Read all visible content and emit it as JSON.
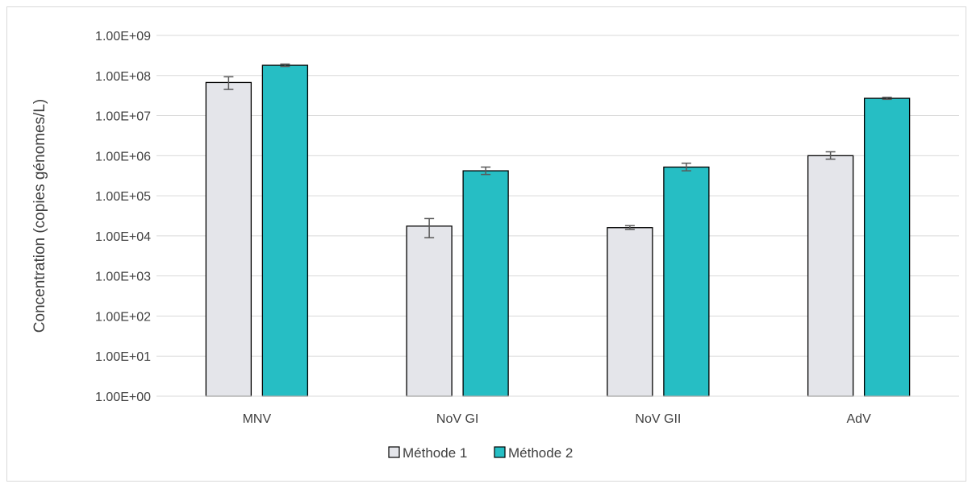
{
  "chart_data": {
    "type": "bar",
    "scale": "log",
    "title": "",
    "xlabel": "",
    "ylabel": "Concentration (copies génomes/L)",
    "ylim": [
      1,
      1000000000
    ],
    "y_ticks": [
      "1.00E+00",
      "1.00E+01",
      "1.00E+02",
      "1.00E+03",
      "1.00E+04",
      "1.00E+05",
      "1.00E+06",
      "1.00E+07",
      "1.00E+08",
      "1.00E+09"
    ],
    "grid": true,
    "legend_position": "bottom",
    "categories": [
      "MNV",
      "NoV GI",
      "NoV GII",
      "AdV"
    ],
    "series": [
      {
        "name": "Méthode 1",
        "color": "#e4e5ea",
        "values": [
          67000000,
          17500,
          16000,
          1000000
        ],
        "error_low": [
          45000000,
          9000,
          14500,
          820000
        ],
        "error_high": [
          93000000,
          27000,
          18000,
          1250000
        ]
      },
      {
        "name": "Méthode 2",
        "color": "#26bec4",
        "values": [
          180000000,
          420000,
          520000,
          27000000
        ],
        "error_low": [
          168000000,
          340000,
          420000,
          25500000
        ],
        "error_high": [
          193000000,
          520000,
          650000,
          28500000
        ]
      }
    ]
  }
}
